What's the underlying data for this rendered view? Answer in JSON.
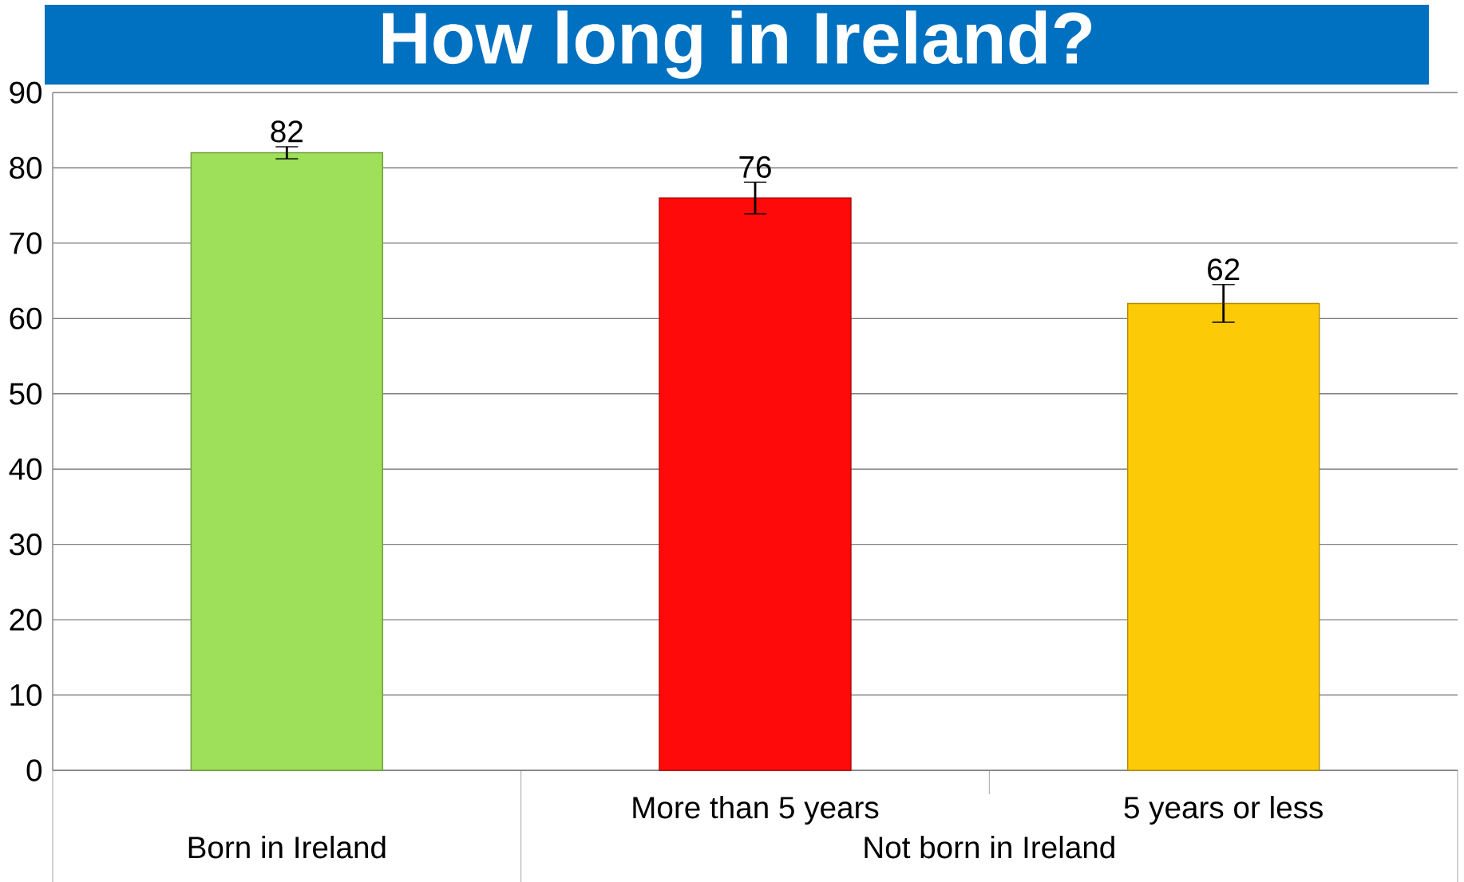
{
  "chart_data": {
    "type": "bar",
    "title": "How long in Ireland?",
    "categories": [
      "Born in Ireland",
      "More than 5 years",
      "5 years or less"
    ],
    "values": [
      82,
      76,
      62
    ],
    "errors": [
      0.8,
      2.1,
      2.5
    ],
    "colors": [
      "#9ee05a",
      "#ff0a0a",
      "#fdca07"
    ],
    "annotations": [
      "Not born in Ireland"
    ],
    "ylim": [
      0,
      90
    ],
    "yticks": [
      0,
      10,
      20,
      30,
      40,
      50,
      60,
      70,
      80,
      90
    ],
    "grid": "y",
    "data_labels": true
  }
}
